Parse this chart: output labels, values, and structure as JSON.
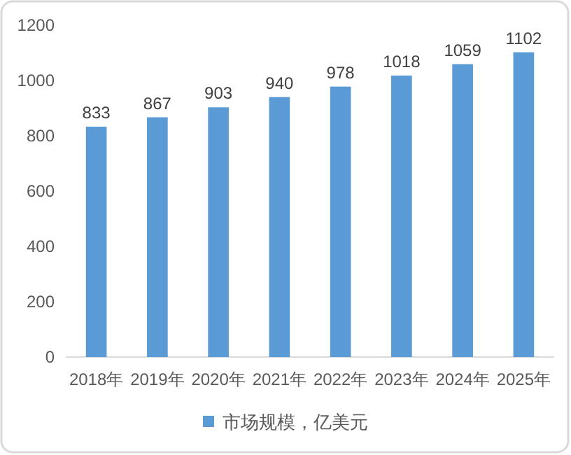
{
  "chart_data": {
    "type": "bar",
    "categories": [
      "2018年",
      "2019年",
      "2020年",
      "2021年",
      "2022年",
      "2023年",
      "2024年",
      "2025年"
    ],
    "series": [
      {
        "name": "市场规模，亿美元",
        "color": "#5b9bd5",
        "values": [
          833,
          867,
          903,
          940,
          978,
          1018,
          1059,
          1102
        ]
      }
    ],
    "ylim": [
      0,
      1200
    ],
    "yticks": [
      0,
      200,
      400,
      600,
      800,
      1000,
      1200
    ],
    "data_labels": true,
    "legend": "bottom"
  }
}
